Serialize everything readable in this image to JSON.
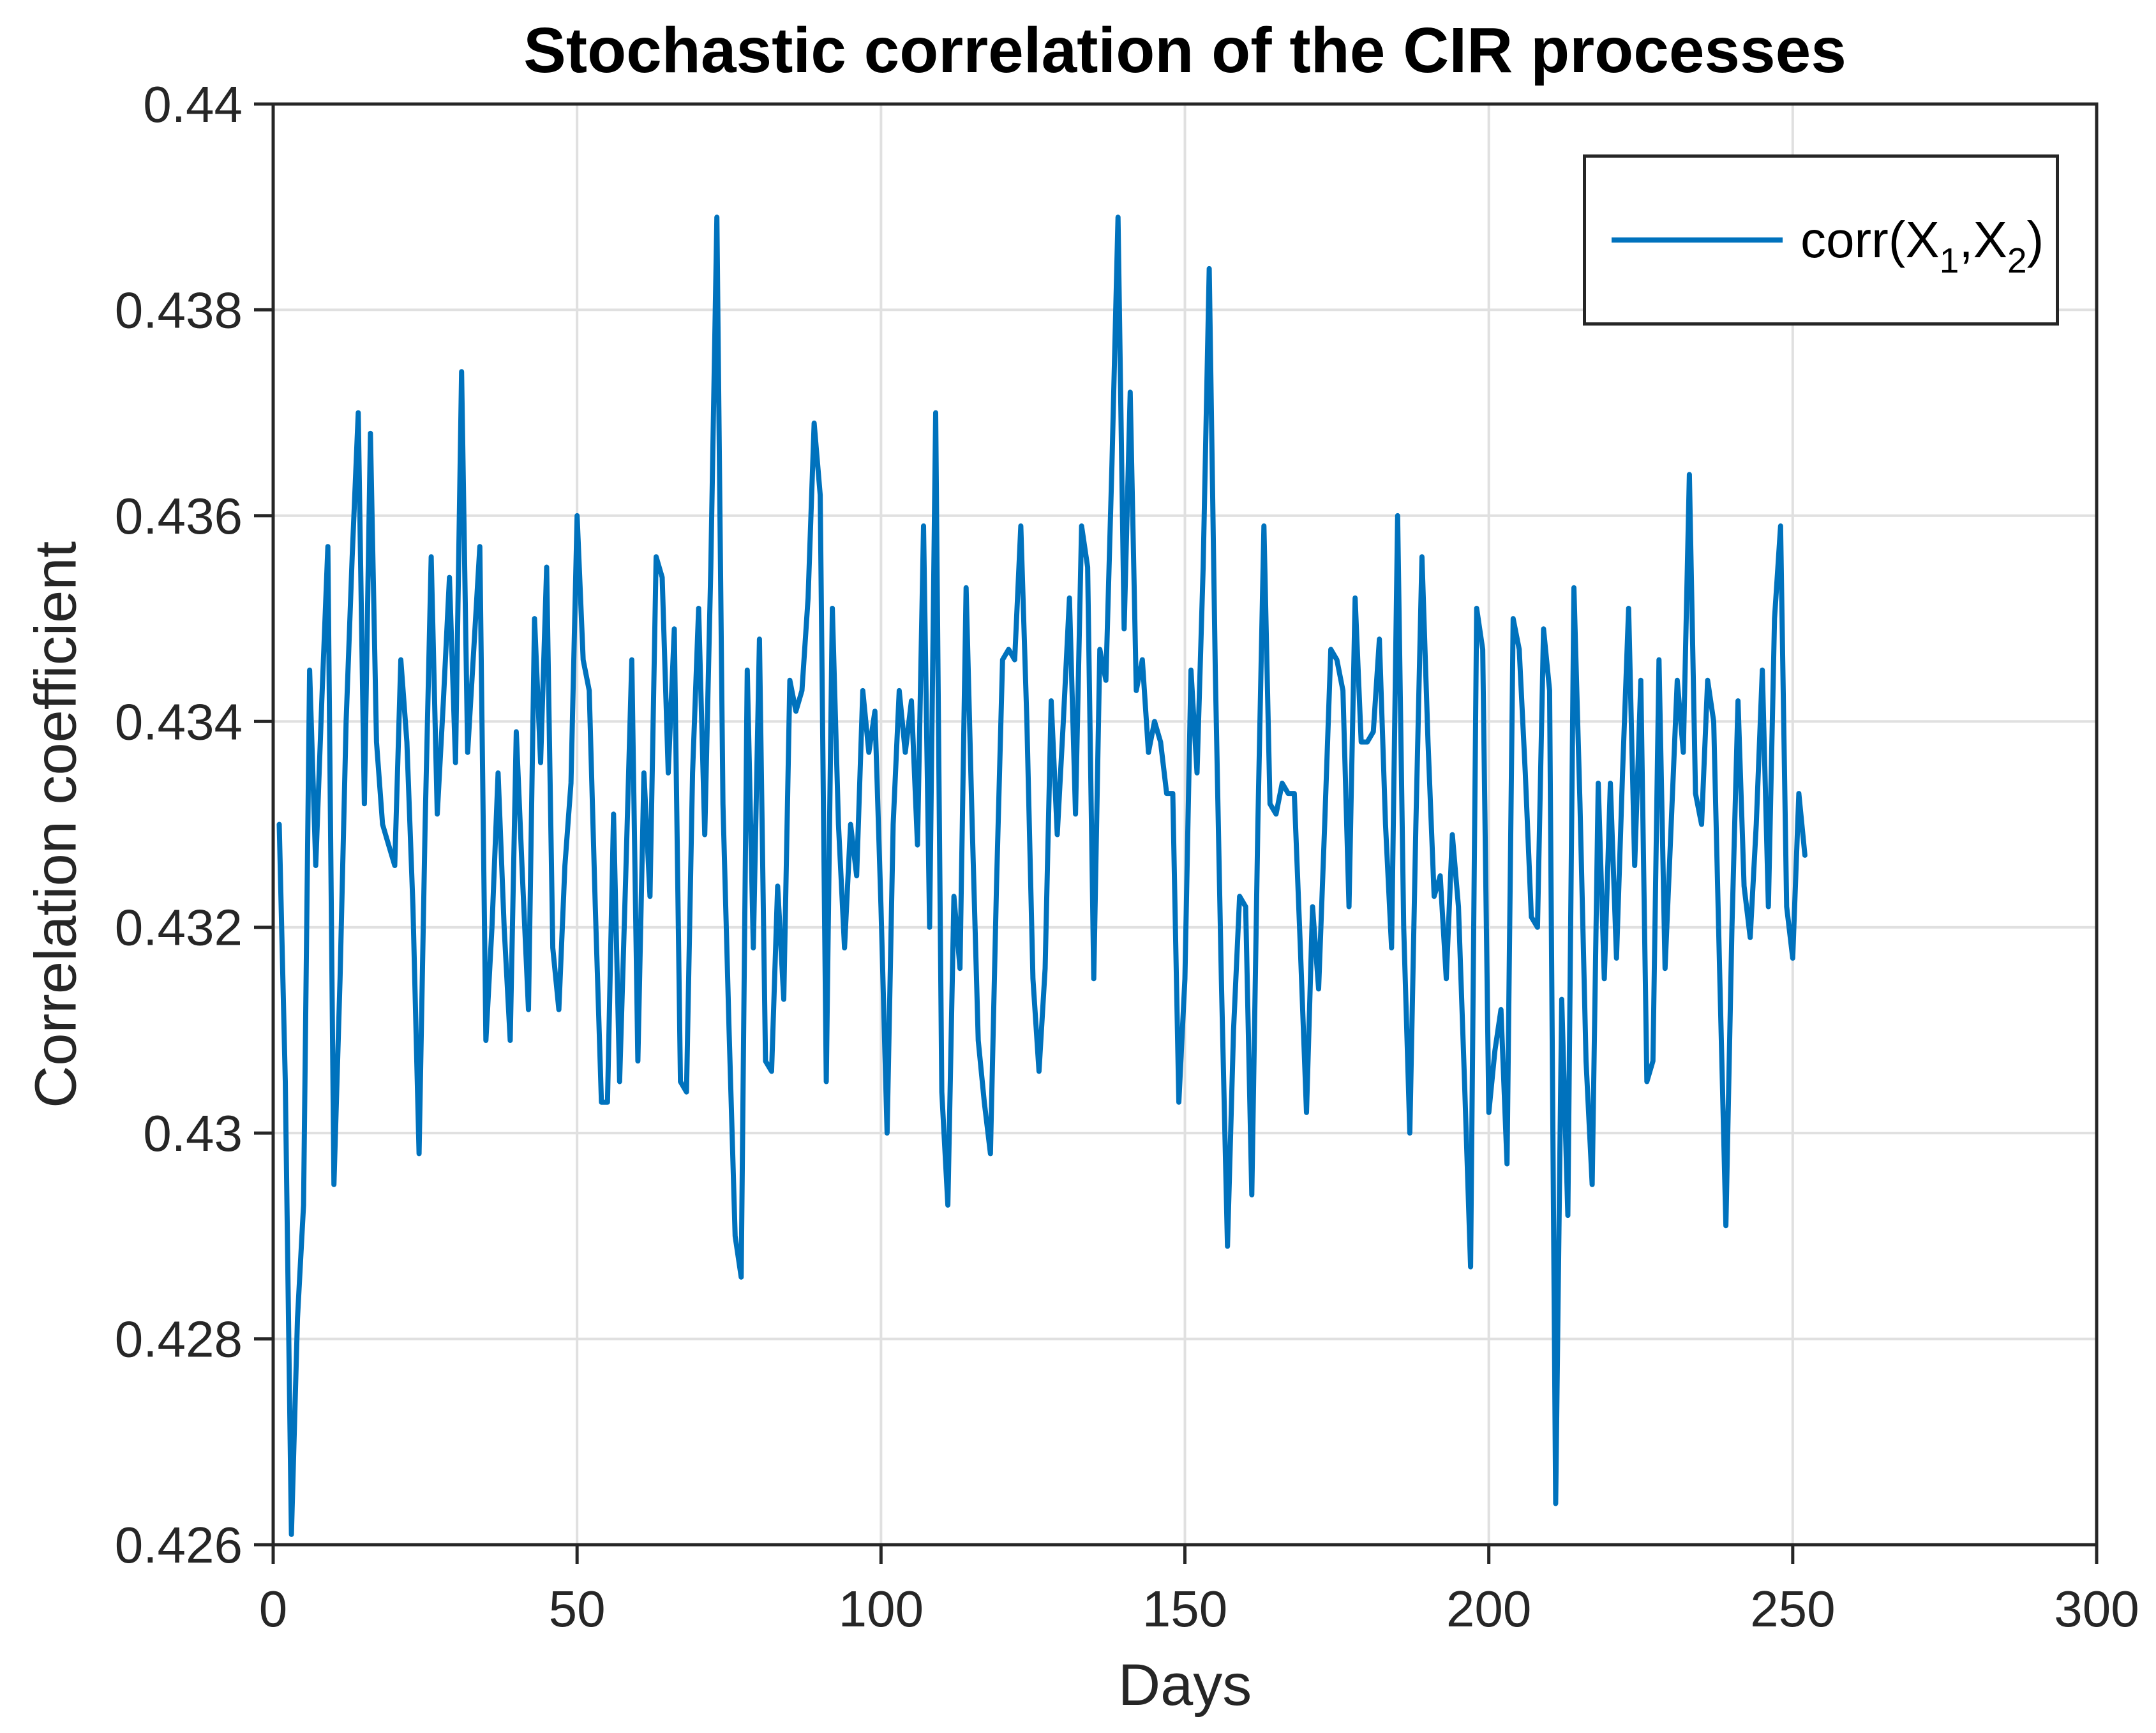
{
  "figure": {
    "title": "Stochastic correlation of the CIR processes",
    "x_axis_label": "Days",
    "y_axis_label": "Correlation coefficient"
  },
  "legend": {
    "prefix": "corr(X",
    "sub1": "1",
    "mid": ",X",
    "sub2": "2",
    "suffix": ")"
  },
  "chart_data": {
    "type": "line",
    "title": "Stochastic correlation of the CIR processes",
    "xlabel": "Days",
    "ylabel": "Correlation coefficient",
    "xlim": [
      0,
      300
    ],
    "ylim": [
      0.426,
      0.44
    ],
    "xticks": [
      0,
      50,
      100,
      150,
      200,
      250,
      300
    ],
    "xtick_labels": [
      "0",
      "50",
      "100",
      "150",
      "200",
      "250",
      "300"
    ],
    "yticks": [
      0.426,
      0.428,
      0.43,
      0.432,
      0.434,
      0.436,
      0.438,
      0.44
    ],
    "ytick_labels": [
      "0.426",
      "0.428",
      "0.43",
      "0.432",
      "0.434",
      "0.436",
      "0.438",
      "0.44"
    ],
    "grid": true,
    "legend": {
      "position": "northeast",
      "entries": [
        "corr(X_1,X_2)"
      ]
    },
    "colors": {
      "line": "#0072BD",
      "grid": "#E0E0E0",
      "axis": "#262626",
      "tick_label": "#262626",
      "background": "#FFFFFF"
    },
    "series": [
      {
        "name": "corr(X_1,X_2)",
        "color": "#0072BD",
        "x_start": 1,
        "x_step": 1,
        "values": [
          0.433,
          0.4305,
          0.4261,
          0.4282,
          0.4293,
          0.4345,
          0.4326,
          0.4342,
          0.4357,
          0.4295,
          0.4315,
          0.434,
          0.4356,
          0.437,
          0.4332,
          0.4368,
          0.4338,
          0.433,
          0.4328,
          0.4326,
          0.4346,
          0.4338,
          0.4322,
          0.4298,
          0.433,
          0.4356,
          0.4331,
          0.4342,
          0.4354,
          0.4336,
          0.4374,
          0.4337,
          0.4347,
          0.4357,
          0.4309,
          0.432,
          0.4335,
          0.432,
          0.4309,
          0.4339,
          0.4325,
          0.4312,
          0.435,
          0.4336,
          0.4355,
          0.4318,
          0.4312,
          0.4326,
          0.4334,
          0.436,
          0.4346,
          0.4343,
          0.4322,
          0.4303,
          0.4303,
          0.4331,
          0.4305,
          0.4325,
          0.4346,
          0.4307,
          0.4335,
          0.4323,
          0.4356,
          0.4354,
          0.4335,
          0.4349,
          0.4305,
          0.4304,
          0.4335,
          0.4351,
          0.4329,
          0.4355,
          0.4389,
          0.4332,
          0.431,
          0.429,
          0.4286,
          0.4345,
          0.4318,
          0.4348,
          0.4307,
          0.4306,
          0.4324,
          0.4313,
          0.4344,
          0.4341,
          0.4343,
          0.4352,
          0.4369,
          0.4362,
          0.4305,
          0.4351,
          0.433,
          0.4318,
          0.433,
          0.4325,
          0.4343,
          0.4337,
          0.4341,
          0.4322,
          0.43,
          0.433,
          0.4343,
          0.4337,
          0.4342,
          0.4328,
          0.4359,
          0.432,
          0.437,
          0.4304,
          0.4293,
          0.4323,
          0.4316,
          0.4353,
          0.433,
          0.4309,
          0.4303,
          0.4298,
          0.4324,
          0.4346,
          0.4347,
          0.4346,
          0.4359,
          0.434,
          0.4315,
          0.4306,
          0.4316,
          0.4342,
          0.4329,
          0.434,
          0.4352,
          0.4331,
          0.4359,
          0.4355,
          0.4315,
          0.4347,
          0.4344,
          0.4365,
          0.4389,
          0.4349,
          0.4372,
          0.4343,
          0.4346,
          0.4337,
          0.434,
          0.4338,
          0.4333,
          0.4333,
          0.4303,
          0.4315,
          0.4345,
          0.4335,
          0.4355,
          0.4384,
          0.4345,
          0.4315,
          0.4289,
          0.431,
          0.4323,
          0.4322,
          0.4294,
          0.433,
          0.4359,
          0.4332,
          0.4331,
          0.4334,
          0.4333,
          0.4333,
          0.4318,
          0.4302,
          0.4322,
          0.4314,
          0.433,
          0.4347,
          0.4346,
          0.4343,
          0.4322,
          0.4352,
          0.4338,
          0.4338,
          0.4339,
          0.4348,
          0.433,
          0.4318,
          0.436,
          0.432,
          0.43,
          0.433,
          0.4356,
          0.4338,
          0.4323,
          0.4325,
          0.4315,
          0.4329,
          0.4322,
          0.4305,
          0.4287,
          0.4351,
          0.4347,
          0.4302,
          0.4308,
          0.4312,
          0.4297,
          0.435,
          0.4347,
          0.4335,
          0.4321,
          0.432,
          0.4349,
          0.4343,
          0.4264,
          0.4313,
          0.4292,
          0.4353,
          0.4332,
          0.4307,
          0.4295,
          0.4334,
          0.4315,
          0.4334,
          0.4317,
          0.4335,
          0.4351,
          0.4326,
          0.4344,
          0.4305,
          0.4307,
          0.4346,
          0.4316,
          0.433,
          0.4344,
          0.4337,
          0.4364,
          0.4333,
          0.433,
          0.4344,
          0.434,
          0.4315,
          0.4291,
          0.432,
          0.4342,
          0.4324,
          0.4319,
          0.433,
          0.4345,
          0.4322,
          0.435,
          0.4359,
          0.4322,
          0.4317,
          0.4333,
          0.4327
        ]
      }
    ]
  }
}
